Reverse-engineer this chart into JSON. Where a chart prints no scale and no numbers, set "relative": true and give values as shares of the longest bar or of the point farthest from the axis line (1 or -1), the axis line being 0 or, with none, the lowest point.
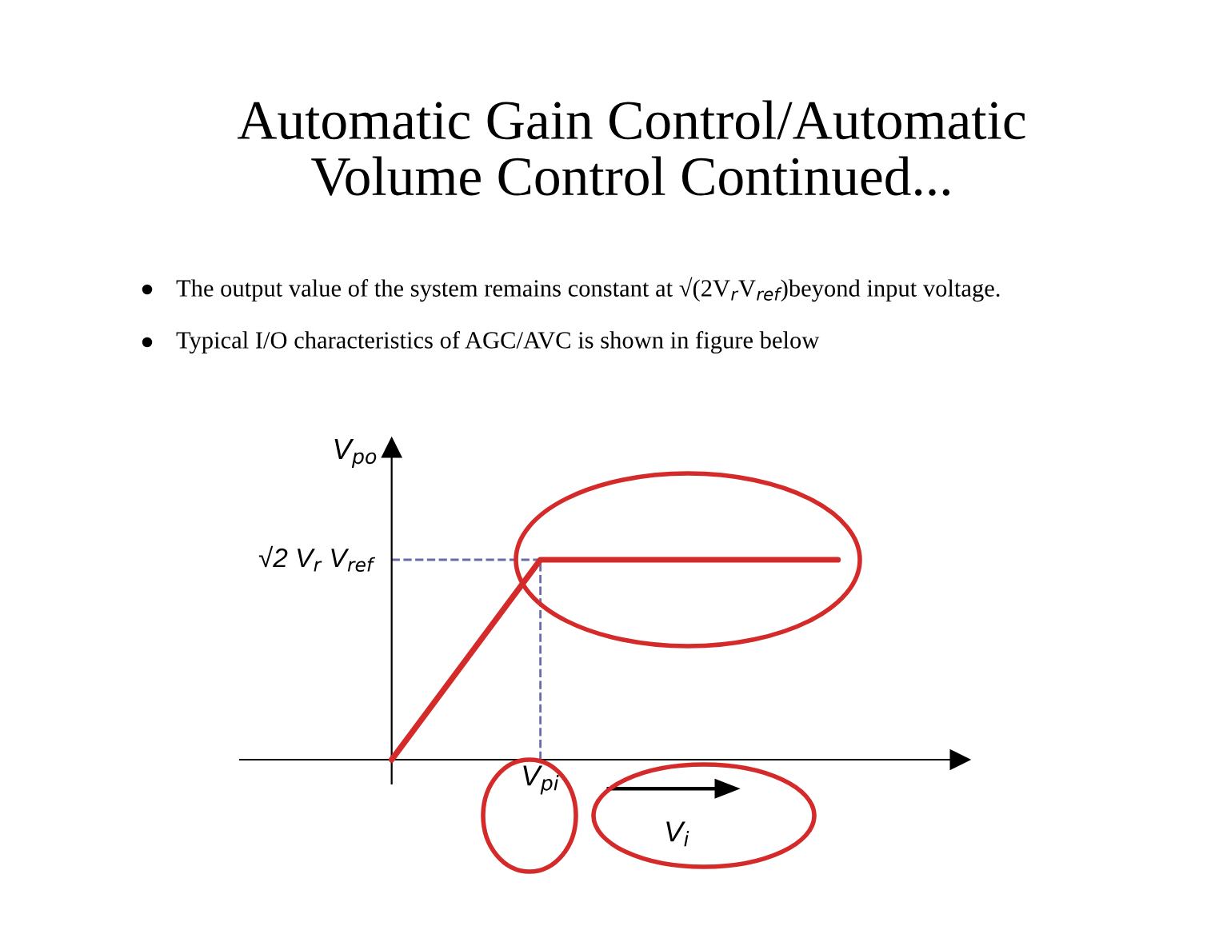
{
  "chart_data": {
    "type": "line",
    "title": "Automatic Gain Control/Automatic\nVolume Control Continued...",
    "annotations": [
      "The output value of the system remains constant at √(2V$_{r}$V$_{ref}$)beyond input voltage.",
      "Typical I/O characteristics of AGC/AVC is shown in figure below",
      "V$_{pi}$"
    ],
    "xlabel": "V$_{i}$",
    "ylabel": "V$_{po}$",
    "relative": true,
    "categories": [
      null,
      null,
      null,
      null
    ],
    "values": [
      0,
      1,
      1,
      1
    ],
    "color": "#d42a2a",
    "ref_lines": [
      {
        "axis": "y",
        "value": 1,
        "label": "√2 V$_{r}$ V$_{ref}$",
        "line_style": "dashed",
        "color": "#6a6aa8"
      }
    ]
  }
}
